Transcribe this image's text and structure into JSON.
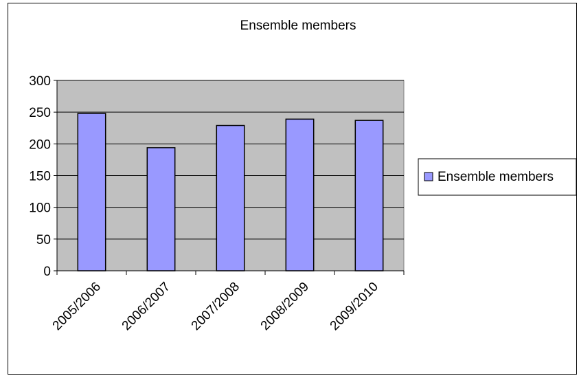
{
  "chart_data": {
    "type": "bar",
    "title": "Ensemble members",
    "categories": [
      "2005/2006",
      "2006/2007",
      "2007/2008",
      "2008/2009",
      "2009/2010"
    ],
    "series": [
      {
        "name": "Ensemble members",
        "values": [
          248,
          194,
          229,
          239,
          237
        ]
      }
    ],
    "ylim": [
      0,
      300
    ],
    "yticks": [
      0,
      50,
      100,
      150,
      200,
      250,
      300
    ],
    "grid": true,
    "legend": "right",
    "colors": {
      "bar_fill": "#9999FF",
      "plot_background": "#C0C0C0",
      "outline": "#000000"
    }
  }
}
